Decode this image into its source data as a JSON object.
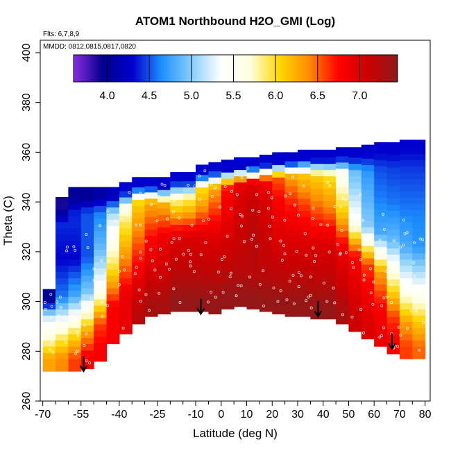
{
  "chart_data": {
    "type": "heatmap",
    "title": "ATOM1 Northbound H2O_GMI (Log)",
    "annotations": [
      "Flts: 6,7,8,9",
      "MMDD: 0812,0815,0817,0820"
    ],
    "xlabel": "Latitude (deg N)",
    "ylabel": "Theta (C)",
    "xlim": [
      -71,
      82
    ],
    "ylim": [
      260,
      405
    ],
    "x_ticks_major": [
      -70,
      -55,
      -40,
      -25,
      -10,
      0,
      10,
      20,
      30,
      40,
      50,
      60,
      70,
      80
    ],
    "x_ticks_minor": [
      -65,
      -60,
      -50,
      -45,
      -35,
      -30,
      -20,
      -15,
      -5,
      5,
      15,
      25,
      35,
      45,
      55,
      65,
      75
    ],
    "y_ticks": [
      260,
      280,
      300,
      320,
      340,
      360,
      380,
      400
    ],
    "colorbar": {
      "range": [
        3.6,
        7.45
      ],
      "ticks": [
        4.0,
        4.5,
        5.0,
        5.5,
        6.0,
        6.5,
        7.0
      ],
      "tick_labels": [
        "4.0",
        "4.5",
        "5.0",
        "5.5",
        "6.0",
        "6.5",
        "7.0"
      ],
      "placement": "top-inside",
      "colors": [
        "#8a2be2",
        "#00008b",
        "#0000cd",
        "#1e90ff",
        "#87cefa",
        "#ffffff",
        "#ffffe0",
        "#ffd700",
        "#ff8c00",
        "#ff0000",
        "#cc0000",
        "#8b1a1a"
      ]
    },
    "field": {
      "x_edges": [
        -70,
        -65,
        -60,
        -55,
        -50,
        -45,
        -40,
        -35,
        -30,
        -25,
        -20,
        -15,
        -10,
        -5,
        0,
        5,
        10,
        15,
        20,
        25,
        30,
        35,
        40,
        45,
        50,
        55,
        60,
        65,
        70,
        75,
        80
      ],
      "top": [
        305,
        342,
        346,
        346,
        346,
        346,
        348,
        350,
        350,
        350,
        352,
        352,
        355,
        356,
        357,
        358,
        358,
        359,
        360,
        360,
        361,
        361,
        361,
        362,
        362,
        363,
        364,
        364,
        365,
        365
      ],
      "bottom": [
        272,
        272,
        272,
        273,
        276,
        283,
        287,
        291,
        294,
        295,
        296,
        296,
        296,
        295,
        297,
        298,
        297,
        296,
        295,
        294,
        294,
        293,
        293,
        291,
        288,
        285,
        282,
        279,
        277,
        277
      ],
      "bands": [
        {
          "dist": 5,
          "vals": [
            6.3,
            6.4,
            6.6,
            6.8,
            6.8,
            6.8,
            6.9,
            7.2,
            7.3,
            7.3,
            7.4,
            7.4,
            7.4,
            7.4,
            7.4,
            7.4,
            7.4,
            7.4,
            7.4,
            7.4,
            7.4,
            7.4,
            7.4,
            7.3,
            7.1,
            7.0,
            6.9,
            6.8,
            6.6,
            6.5
          ]
        },
        {
          "dist": 15,
          "vals": [
            5.6,
            5.8,
            6.0,
            6.3,
            6.6,
            6.8,
            6.9,
            7.0,
            7.1,
            7.1,
            7.2,
            7.2,
            7.2,
            7.2,
            7.2,
            7.2,
            7.2,
            7.2,
            7.2,
            7.2,
            7.2,
            7.2,
            7.2,
            7.1,
            7.0,
            6.9,
            6.8,
            6.6,
            6.3,
            6.1
          ]
        },
        {
          "dist": 30,
          "vals": [
            4.7,
            4.6,
            4.8,
            5.0,
            5.4,
            6.0,
            6.4,
            6.6,
            6.8,
            6.9,
            7.0,
            7.0,
            7.0,
            7.0,
            7.0,
            7.1,
            7.2,
            7.1,
            7.0,
            7.0,
            7.0,
            7.0,
            7.0,
            6.9,
            6.8,
            6.6,
            6.3,
            5.8,
            5.4,
            5.3
          ]
        },
        {
          "dist": 45,
          "vals": [
            4.4,
            4.3,
            4.3,
            4.5,
            4.9,
            5.4,
            5.9,
            6.2,
            6.3,
            6.2,
            5.8,
            5.9,
            6.2,
            6.5,
            6.8,
            7.0,
            7.1,
            7.0,
            6.8,
            6.7,
            6.6,
            6.5,
            6.4,
            6.1,
            5.4,
            5.0,
            4.8,
            4.9,
            4.8,
            4.7
          ]
        },
        {
          "dist": 60,
          "vals": [
            4.2,
            4.4,
            4.4,
            4.5,
            4.6,
            4.8,
            5.2,
            5.6,
            5.8,
            5.6,
            5.2,
            5.3,
            5.6,
            5.9,
            6.3,
            6.6,
            6.7,
            6.6,
            6.4,
            6.2,
            6.0,
            6.0,
            5.9,
            5.5,
            5.0,
            4.8,
            4.6,
            4.6,
            4.6,
            4.6
          ]
        },
        {
          "dist": 80,
          "vals": [
            4.0,
            4.0,
            4.2,
            4.4,
            4.6,
            4.8,
            5.0,
            5.1,
            5.0,
            4.9,
            4.7,
            4.8,
            5.0,
            5.2,
            5.4,
            5.6,
            5.7,
            5.7,
            5.4,
            5.2,
            5.0,
            5.0,
            4.9,
            4.8,
            4.6,
            4.5,
            4.4,
            4.4,
            4.4,
            4.4
          ]
        }
      ],
      "top_band": {
        "dist_from_top": 4,
        "vals": [
          4.0,
          3.9,
          4.0,
          4.0,
          4.1,
          4.2,
          4.3,
          4.3,
          4.3,
          4.3,
          4.3,
          4.3,
          4.3,
          4.3,
          4.3,
          4.3,
          4.3,
          4.3,
          4.3,
          4.3,
          4.3,
          4.3,
          4.3,
          4.3,
          4.3,
          4.3,
          4.3,
          4.3,
          4.3,
          4.3
        ]
      }
    },
    "tropopause_arrows": [
      {
        "lat": -54,
        "theta": 272
      },
      {
        "lat": -8,
        "theta": 295
      },
      {
        "lat": 38,
        "theta": 294
      },
      {
        "lat": 67,
        "theta": 281
      }
    ]
  }
}
